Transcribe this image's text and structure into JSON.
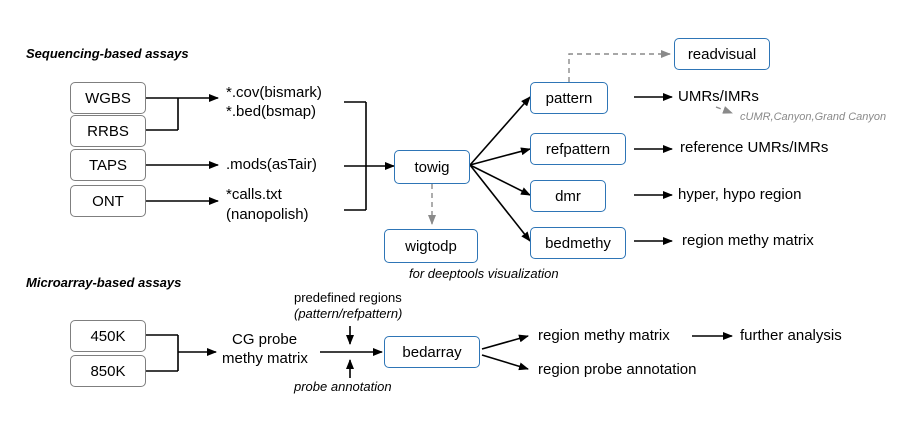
{
  "sections": {
    "sequencing": "Sequencing-based assays",
    "microarray": "Microarray-based assays"
  },
  "inputs": {
    "wgbs": "WGBS",
    "rrbs": "RRBS",
    "taps": "TAPS",
    "ont": "ONT",
    "k450": "450K",
    "k850": "850K"
  },
  "formats": {
    "cov": "*.cov(bismark)",
    "bed": "*.bed(bsmap)",
    "mods": ".mods(asTair)",
    "calls": "*calls.txt",
    "nanopolish": "(nanopolish)",
    "cg_probe_1": "CG probe",
    "cg_probe_2": "methy matrix"
  },
  "tools": {
    "towig": "towig",
    "wigtodp": "wigtodp",
    "readvisual": "readvisual",
    "pattern": "pattern",
    "refpattern": "refpattern",
    "dmr": "dmr",
    "bedmethy": "bedmethy",
    "bedarray": "bedarray"
  },
  "outputs": {
    "umrs": "UMRs/IMRs",
    "umr_types": "cUMR,Canyon,Grand Canyon",
    "ref_umrs": "reference UMRs/IMRs",
    "hyper_hypo": "hyper, hypo region",
    "region_matrix": "region methy matrix",
    "array_matrix": "region methy matrix",
    "further": "further analysis",
    "probe_annotation_out": "region probe annotation"
  },
  "notes": {
    "deeptools": "for deeptools visualization",
    "predefined_1": "predefined regions",
    "predefined_2": "(pattern/refpattern)",
    "probe_annotation": "probe annotation"
  },
  "colors": {
    "tool_border": "#2e75b6",
    "input_border": "#7f7f7f",
    "dashed_arrow": "#8a8a8a"
  }
}
